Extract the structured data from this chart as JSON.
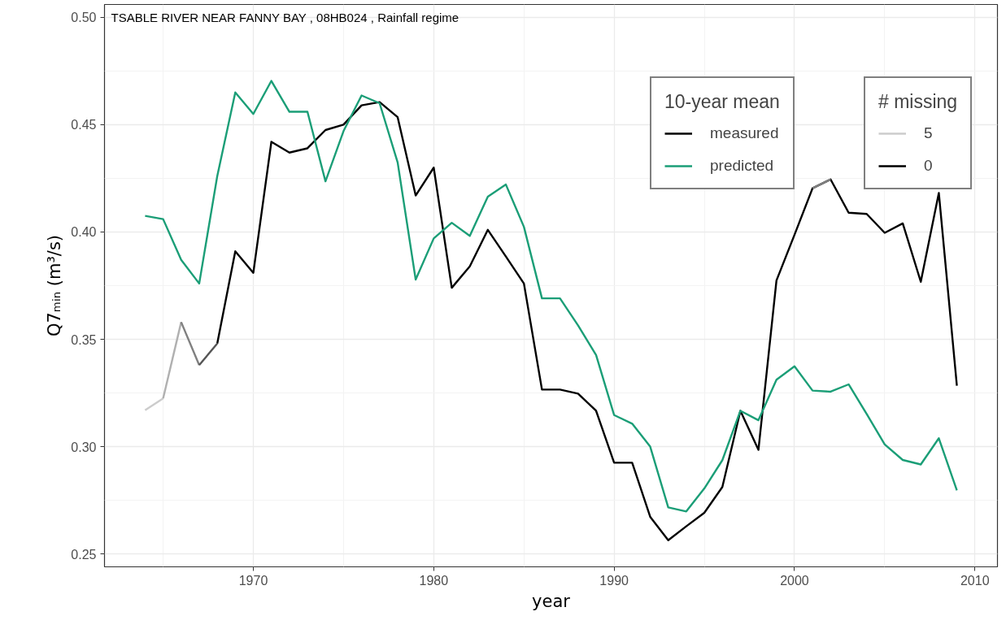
{
  "chart_data": {
    "type": "line",
    "title": "TSABLE RIVER NEAR FANNY BAY ,  08HB024 ,  Rainfall  regime",
    "xlabel": "year",
    "ylabel": "Q7ₘᵢₙ (m³/s)",
    "legend_title": "10-year mean",
    "clabel": "# missing",
    "cticks": [
      {
        "label": "5"
      },
      {
        "label": "0"
      }
    ],
    "x": [
      1964,
      1965,
      1966,
      1967,
      1968,
      1969,
      1970,
      1971,
      1972,
      1973,
      1974,
      1975,
      1976,
      1977,
      1978,
      1979,
      1980,
      1981,
      1982,
      1983,
      1984,
      1985,
      1986,
      1987,
      1988,
      1989,
      1990,
      1991,
      1992,
      1993,
      1994,
      1995,
      1996,
      1997,
      1998,
      1999,
      2000,
      2001,
      2002,
      2003,
      2004,
      2005,
      2006,
      2007,
      2008,
      2009
    ],
    "series": [
      {
        "name": "measured",
        "color": "#000000",
        "values": [
          null,
          null,
          null,
          null,
          0.348,
          0.391,
          0.381,
          0.442,
          0.437,
          0.439,
          0.4475,
          0.45,
          0.459,
          0.4605,
          0.4535,
          0.417,
          0.43,
          0.374,
          0.384,
          0.401,
          0.3886,
          0.376,
          0.3266,
          0.3266,
          0.3247,
          0.3167,
          0.2925,
          0.2925,
          0.2673,
          0.2564,
          0.2629,
          0.2692,
          0.2812,
          0.3167,
          0.2985,
          0.3774,
          0.3987,
          0.4204,
          0.4245,
          0.409,
          0.4084,
          0.3996,
          0.404,
          0.3768,
          0.4182,
          0.3284
        ]
      },
      {
        "color": "#cccccc",
        "x": [
          1964,
          1965
        ],
        "values": [
          0.317,
          0.3225
        ]
      },
      {
        "color": "#b0b0b0",
        "x": [
          1965,
          1966
        ],
        "values": [
          0.3225,
          0.358
        ]
      },
      {
        "color": "#808080",
        "x": [
          1966,
          1967
        ],
        "values": [
          0.358,
          0.338
        ]
      },
      {
        "color": "#555555",
        "x": [
          1967,
          1968
        ],
        "values": [
          0.338,
          0.348
        ]
      },
      {
        "color": "#808080",
        "x": [
          2001,
          2002
        ],
        "values": [
          0.4204,
          0.4245
        ]
      },
      {
        "name": "predicted",
        "color": "#1b9e77",
        "values": [
          0.4075,
          0.406,
          0.387,
          0.376,
          0.426,
          0.465,
          0.455,
          0.4704,
          0.456,
          0.456,
          0.4236,
          0.447,
          0.4636,
          0.46,
          0.4324,
          0.3778,
          0.397,
          0.4043,
          0.3982,
          0.4165,
          0.4221,
          0.4024,
          0.3691,
          0.3691,
          0.3565,
          0.3427,
          0.3147,
          0.3107,
          0.3,
          0.2717,
          0.2698,
          0.2805,
          0.2937,
          0.3167,
          0.3123,
          0.3312,
          0.3374,
          0.3261,
          0.3256,
          0.329,
          0.3152,
          0.301,
          0.2938,
          0.2917,
          0.3039,
          0.2796
        ]
      }
    ],
    "xlim": [
      1961.75,
      2011.25
    ],
    "ylim": [
      0.244,
      0.506
    ],
    "xticks": [
      1970,
      1980,
      1990,
      2000,
      2010
    ],
    "yticks": [
      {
        "value": 0.25,
        "label": "0.25"
      },
      {
        "value": 0.3,
        "label": "0.30"
      },
      {
        "value": 0.35,
        "label": "0.35"
      },
      {
        "value": 0.4,
        "label": "0.40"
      },
      {
        "value": 0.45,
        "label": "0.45"
      },
      {
        "value": 0.5,
        "label": "0.50"
      }
    ],
    "grid": true,
    "legend": "top right",
    "line_style": "solid"
  }
}
